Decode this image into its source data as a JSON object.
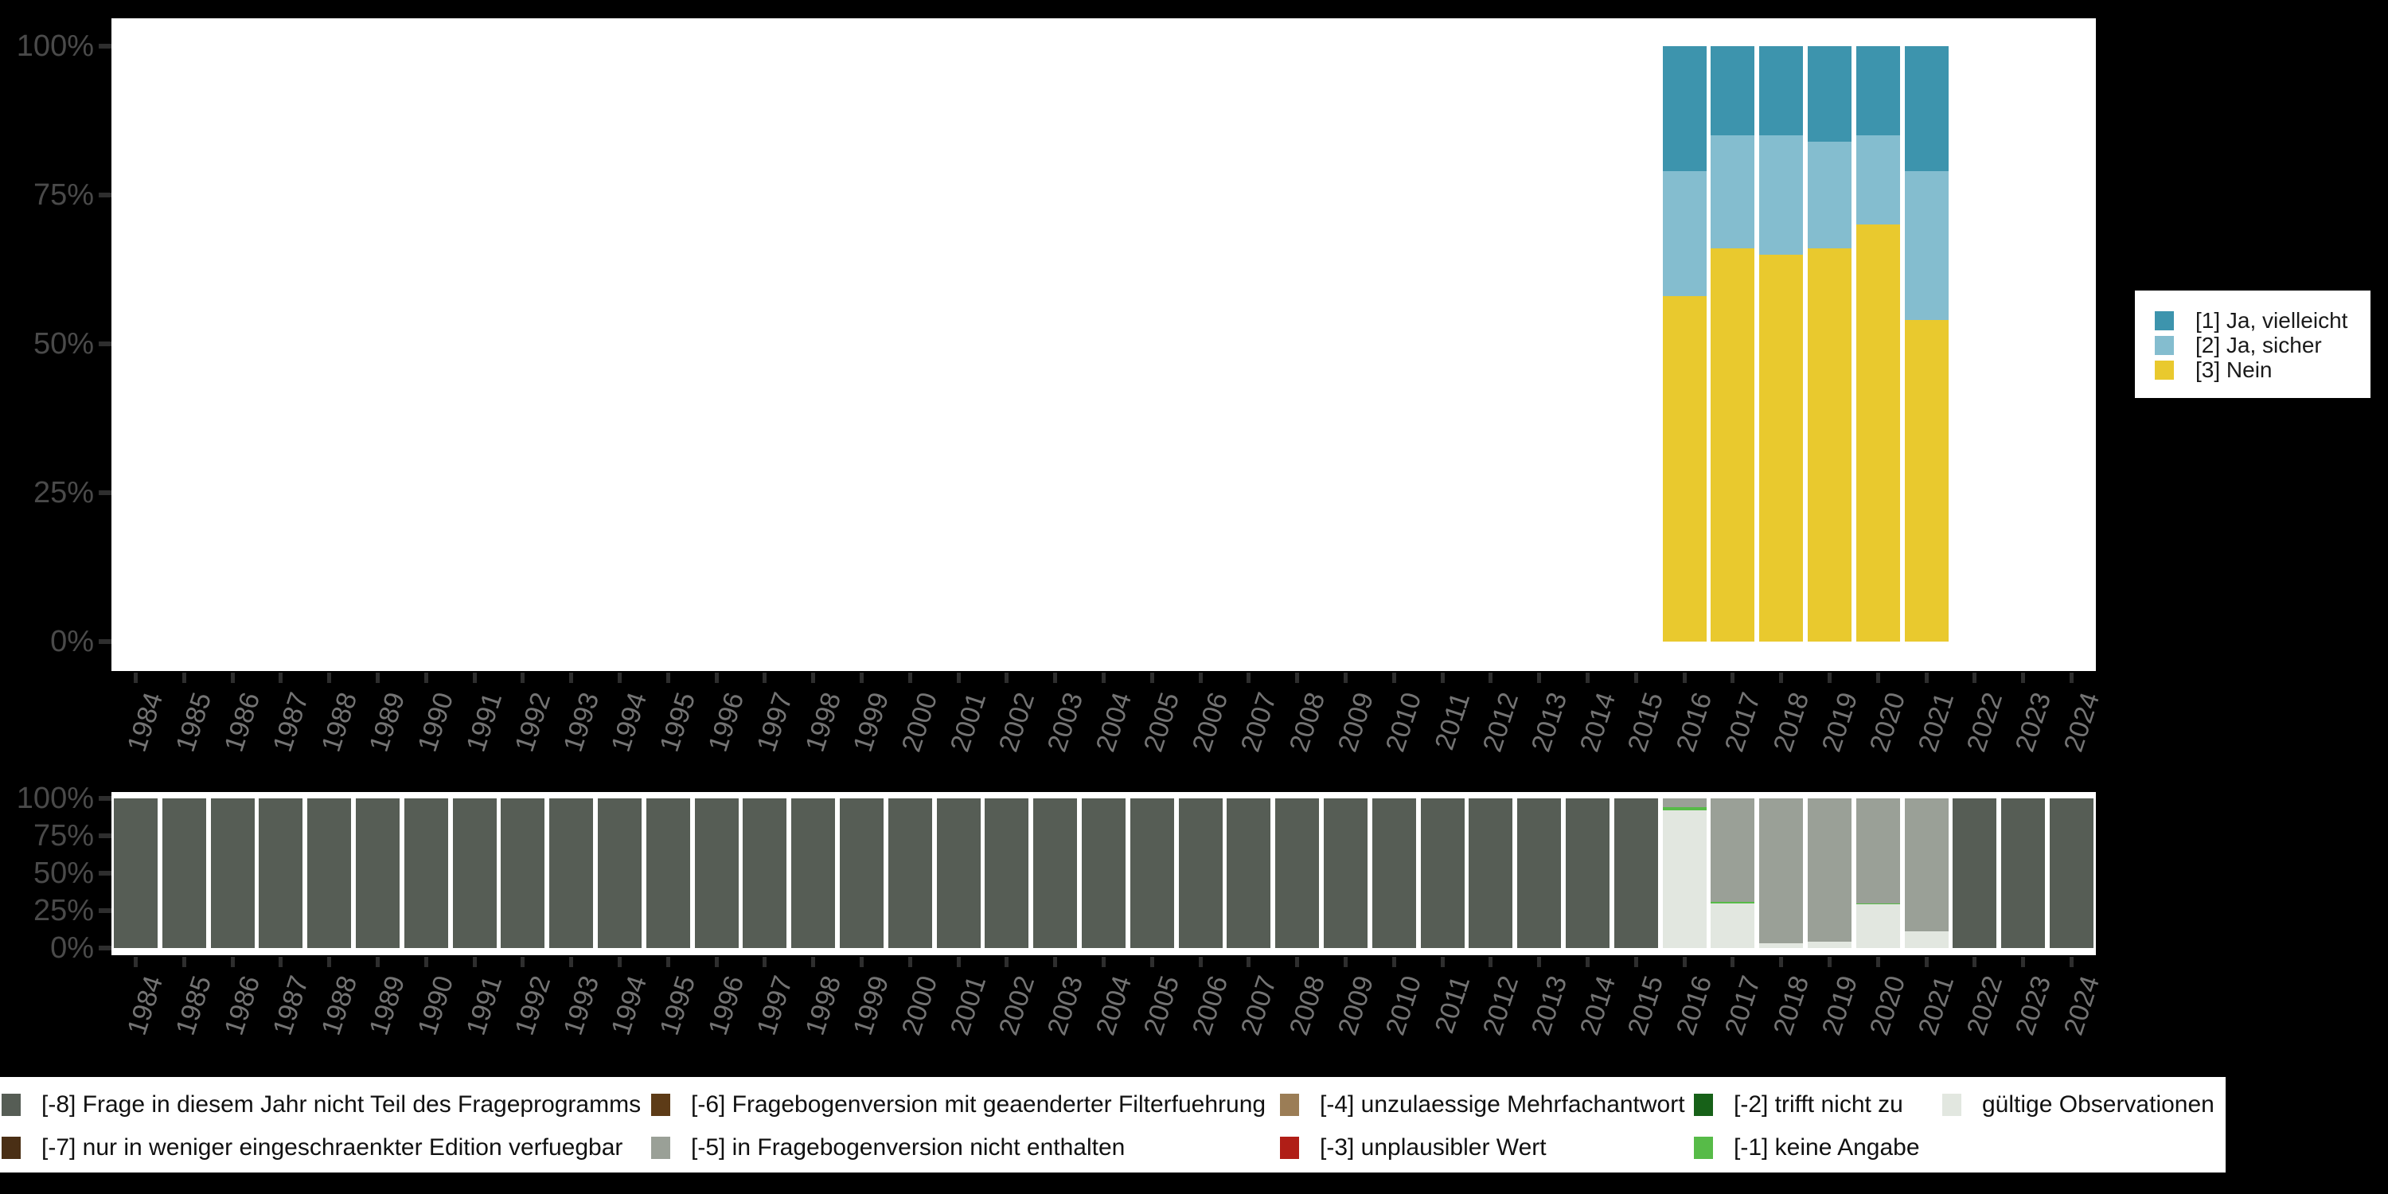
{
  "colors": {
    "background": "#000000",
    "plot_background": "#ffffff",
    "tick": "#2e2e2e",
    "y_axis_label": "#4a4a4a",
    "x_axis_label": "#747474",
    "legend_text": "#1a1a1a"
  },
  "years": [
    "1984",
    "1985",
    "1986",
    "1987",
    "1988",
    "1989",
    "1990",
    "1991",
    "1992",
    "1993",
    "1994",
    "1995",
    "1996",
    "1997",
    "1998",
    "1999",
    "2000",
    "2001",
    "2002",
    "2003",
    "2004",
    "2005",
    "2006",
    "2007",
    "2008",
    "2009",
    "2010",
    "2011",
    "2012",
    "2013",
    "2014",
    "2015",
    "2016",
    "2017",
    "2018",
    "2019",
    "2020",
    "2021",
    "2022",
    "2023",
    "2024"
  ],
  "chart_data": [
    {
      "id": "answer-distribution",
      "type": "bar",
      "stacked": true,
      "unit": "percent",
      "title": "",
      "xlabel": "",
      "ylabel": "",
      "ylim": [
        0,
        100
      ],
      "grid": false,
      "legend_position": "right",
      "y_ticks": [
        "100%",
        "75%",
        "50%",
        "25%",
        "0%"
      ],
      "categories": [
        "2016",
        "2017",
        "2018",
        "2019",
        "2020",
        "2021"
      ],
      "series": [
        {
          "name": "[1] Ja, vielleicht",
          "color": "#3d94ad",
          "values": [
            21,
            15,
            15,
            16,
            15,
            21
          ]
        },
        {
          "name": "[2] Ja, sicher",
          "color": "#84bdcf",
          "values": [
            21,
            19,
            20,
            18,
            15,
            25
          ]
        },
        {
          "name": "[3] Nein",
          "color": "#e9c92e",
          "values": [
            58,
            66,
            65,
            66,
            70,
            54
          ]
        }
      ]
    },
    {
      "id": "missing-values",
      "type": "bar",
      "stacked": true,
      "unit": "percent",
      "title": "",
      "xlabel": "",
      "ylabel": "",
      "ylim": [
        0,
        100
      ],
      "grid": false,
      "legend_position": "bottom",
      "y_ticks": [
        "100%",
        "75%",
        "50%",
        "25%",
        "0%"
      ],
      "categories": [
        "1984",
        "1985",
        "1986",
        "1987",
        "1988",
        "1989",
        "1990",
        "1991",
        "1992",
        "1993",
        "1994",
        "1995",
        "1996",
        "1997",
        "1998",
        "1999",
        "2000",
        "2001",
        "2002",
        "2003",
        "2004",
        "2005",
        "2006",
        "2007",
        "2008",
        "2009",
        "2010",
        "2011",
        "2012",
        "2013",
        "2014",
        "2015",
        "2016",
        "2017",
        "2018",
        "2019",
        "2020",
        "2021",
        "2022",
        "2023",
        "2024"
      ],
      "series": [
        {
          "name": "[-8] Frage in diesem Jahr nicht Teil des Frageprogramms",
          "color": "#565d55",
          "values": [
            100,
            100,
            100,
            100,
            100,
            100,
            100,
            100,
            100,
            100,
            100,
            100,
            100,
            100,
            100,
            100,
            100,
            100,
            100,
            100,
            100,
            100,
            100,
            100,
            100,
            100,
            100,
            100,
            100,
            100,
            100,
            100,
            0,
            0,
            0,
            0,
            0,
            0,
            100,
            100,
            100
          ]
        },
        {
          "name": "[-5] in Fragebogenversion nicht enthalten",
          "color": "#9aa097",
          "values": [
            0,
            0,
            0,
            0,
            0,
            0,
            0,
            0,
            0,
            0,
            0,
            0,
            0,
            0,
            0,
            0,
            0,
            0,
            0,
            0,
            0,
            0,
            0,
            0,
            0,
            0,
            0,
            0,
            0,
            0,
            0,
            0,
            6,
            69,
            97,
            96,
            70,
            89,
            0,
            0,
            0
          ]
        },
        {
          "name": "[-1] keine Angabe",
          "color": "#57bb48",
          "values": [
            0,
            0,
            0,
            0,
            0,
            0,
            0,
            0,
            0,
            0,
            0,
            0,
            0,
            0,
            0,
            0,
            0,
            0,
            0,
            0,
            0,
            0,
            0,
            0,
            0,
            0,
            0,
            0,
            0,
            0,
            0,
            0,
            2,
            1,
            0,
            0,
            1,
            0,
            0,
            0,
            0
          ]
        },
        {
          "name": "gültige Observationen",
          "color": "#e2e7e0",
          "values": [
            0,
            0,
            0,
            0,
            0,
            0,
            0,
            0,
            0,
            0,
            0,
            0,
            0,
            0,
            0,
            0,
            0,
            0,
            0,
            0,
            0,
            0,
            0,
            0,
            0,
            0,
            0,
            0,
            0,
            0,
            0,
            0,
            92,
            30,
            3,
            4,
            29,
            11,
            0,
            0,
            0
          ]
        }
      ]
    }
  ],
  "legend_main": {
    "items": [
      {
        "label": "[1] Ja, vielleicht",
        "color": "#3d94ad"
      },
      {
        "label": "[2] Ja, sicher",
        "color": "#84bdcf"
      },
      {
        "label": "[3] Nein",
        "color": "#e9c92e"
      }
    ]
  },
  "legend_missing": {
    "rows": [
      [
        {
          "label": "[-8] Frage in diesem Jahr nicht Teil des Frageprogramms",
          "color": "#565d55"
        },
        {
          "label": "[-6] Fragebogenversion mit geaenderter Filterfuehrung",
          "color": "#5d3b17"
        },
        {
          "label": "[-4] unzulaessige Mehrfachantwort",
          "color": "#9b7d56"
        },
        {
          "label": "[-2] trifft nicht zu",
          "color": "#176118"
        },
        {
          "label": "gültige Observationen",
          "color": "#e2e7e0"
        }
      ],
      [
        {
          "label": "[-7] nur in weniger eingeschraenkter Edition verfuegbar",
          "color": "#4a2f15"
        },
        {
          "label": "[-5] in Fragebogenversion nicht enthalten",
          "color": "#9aa097"
        },
        {
          "label": "[-3] unplausibler Wert",
          "color": "#b01e17"
        },
        {
          "label": "[-1] keine Angabe",
          "color": "#57bb48"
        }
      ]
    ]
  }
}
